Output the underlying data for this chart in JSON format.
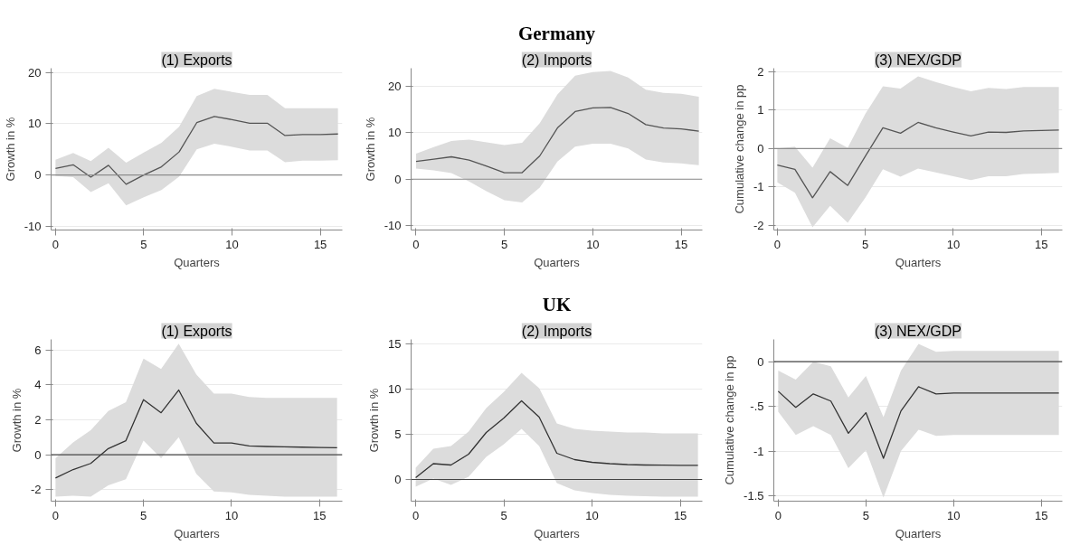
{
  "chart_data": [
    {
      "type": "line",
      "title": "(1) Exports",
      "xlabel": "Quarters",
      "ylabel": "Growth in %",
      "x": [
        0,
        1,
        2,
        3,
        4,
        5,
        6,
        7,
        8,
        9,
        10,
        11,
        12,
        13,
        14,
        15,
        16
      ],
      "xlim": [
        -0.25,
        16.25
      ],
      "xticks": [
        0,
        5,
        10,
        15
      ],
      "ylim": [
        -10.7,
        20.8
      ],
      "yticks": [
        {
          "value": -10,
          "label": "-10"
        },
        0,
        10,
        20
      ],
      "grid": "y",
      "ref_lines": [
        {
          "axis": "y",
          "value": 0,
          "color": "#8c8c8c"
        }
      ],
      "series": [
        {
          "color": "#555555",
          "values": [
            1.3,
            2.0,
            -0.4,
            1.9,
            -1.8,
            0,
            1.6,
            4.5,
            10.2,
            11.4,
            10.8,
            10.1,
            10.1,
            7.7,
            7.9,
            7.9,
            8.0
          ],
          "upper": [
            3.0,
            4.3,
            2.7,
            5.3,
            2.4,
            4.4,
            6.3,
            9.4,
            15.4,
            16.8,
            16.2,
            15.6,
            15.6,
            13.0,
            13.0,
            13.0,
            13.0
          ],
          "lower": [
            -0.2,
            -0.4,
            -3.3,
            -1.6,
            -5.9,
            -4.3,
            -2.9,
            -0.3,
            5.0,
            6.1,
            5.5,
            4.8,
            4.8,
            2.5,
            2.8,
            2.8,
            2.9
          ]
        }
      ]
    },
    {
      "type": "line",
      "title": "(2) Imports",
      "annotations": [
        "Germany"
      ],
      "xlabel": "Quarters",
      "ylabel": "Growth in %",
      "x": [
        0,
        1,
        2,
        3,
        4,
        5,
        6,
        7,
        8,
        9,
        10,
        11,
        12,
        13,
        14,
        15,
        16
      ],
      "xlim": [
        -0.28,
        16.2
      ],
      "xticks": [
        0,
        5,
        10,
        15
      ],
      "ylim": [
        -10.9,
        23.8
      ],
      "yticks": [
        {
          "value": -10,
          "label": "-10"
        },
        0,
        10,
        20
      ],
      "grid": "y",
      "ref_lines": [
        {
          "axis": "y",
          "value": 0,
          "color": "#8c8c8c"
        }
      ],
      "series": [
        {
          "color": "#555555",
          "values": [
            3.8,
            4.3,
            4.8,
            4.1,
            2.8,
            1.4,
            1.4,
            5.0,
            11.0,
            14.5,
            15.3,
            15.4,
            14.1,
            11.7,
            11.0,
            10.8,
            10.3
          ],
          "upper": [
            5.5,
            6.9,
            8.2,
            8.5,
            7.9,
            7.3,
            7.8,
            12.0,
            18.2,
            22.2,
            23.0,
            23.2,
            21.8,
            19.2,
            18.5,
            18.3,
            17.7
          ],
          "lower": [
            2.3,
            1.9,
            1.3,
            -0.5,
            -2.6,
            -4.5,
            -5.0,
            -1.8,
            3.8,
            7.0,
            7.6,
            7.6,
            6.6,
            4.2,
            3.6,
            3.4,
            3.0
          ]
        }
      ]
    },
    {
      "type": "line",
      "title": "(3) NEX/GDP",
      "xlabel": "Quarters",
      "ylabel": "Cumulative change in pp",
      "x": [
        0,
        1,
        2,
        3,
        4,
        5,
        6,
        7,
        8,
        9,
        10,
        11,
        12,
        13,
        14,
        15,
        16
      ],
      "xlim": [
        -0.2,
        16.2
      ],
      "xticks": [
        0,
        5,
        10,
        15
      ],
      "ylim": [
        -2.12,
        2.09
      ],
      "yticks": [
        {
          "value": -2,
          "label": "-2"
        },
        {
          "value": -1,
          "label": "-1"
        },
        0,
        1,
        2
      ],
      "grid": "y",
      "ref_lines": [
        {
          "axis": "y",
          "value": 0,
          "color": "#8c8c8c"
        }
      ],
      "series": [
        {
          "color": "#555555",
          "values": [
            -0.43,
            -0.54,
            -1.28,
            -0.6,
            -0.96,
            -0.2,
            0.54,
            0.4,
            0.68,
            0.54,
            0.43,
            0.33,
            0.43,
            0.42,
            0.46,
            0.47,
            0.48
          ],
          "upper": [
            0.0,
            0.05,
            -0.5,
            0.27,
            0.02,
            0.9,
            1.62,
            1.56,
            1.88,
            1.73,
            1.6,
            1.49,
            1.58,
            1.55,
            1.6,
            1.6,
            1.6
          ],
          "lower": [
            -0.88,
            -1.15,
            -2.05,
            -1.49,
            -1.93,
            -1.28,
            -0.54,
            -0.73,
            -0.52,
            -0.62,
            -0.72,
            -0.82,
            -0.72,
            -0.72,
            -0.66,
            -0.65,
            -0.63
          ]
        }
      ]
    },
    {
      "type": "line",
      "title": "(1) Exports",
      "xlabel": "Quarters",
      "ylabel": "Growth in %",
      "x": [
        0,
        1,
        2,
        3,
        4,
        5,
        6,
        7,
        8,
        9,
        10,
        11,
        12,
        13,
        14,
        15,
        16
      ],
      "xlim": [
        -0.25,
        16.3
      ],
      "xticks": [
        0,
        5,
        10,
        15
      ],
      "ylim": [
        -2.66,
        6.6
      ],
      "yticks": [
        {
          "value": -2,
          "label": "-2"
        },
        0,
        2,
        4,
        6
      ],
      "grid": "y",
      "ref_lines": [
        {
          "axis": "y",
          "value": 0,
          "color": "#444444"
        }
      ],
      "series": [
        {
          "color": "#333333",
          "values": [
            -1.33,
            -0.85,
            -0.5,
            0.35,
            0.8,
            3.15,
            2.4,
            3.7,
            1.8,
            0.67,
            0.67,
            0.5,
            0.47,
            0.45,
            0.43,
            0.41,
            0.4
          ],
          "upper": [
            -0.2,
            0.7,
            1.4,
            2.5,
            3.0,
            5.5,
            4.9,
            6.35,
            4.6,
            3.5,
            3.5,
            3.3,
            3.25,
            3.25,
            3.25,
            3.25,
            3.25
          ],
          "lower": [
            -2.4,
            -2.35,
            -2.4,
            -1.75,
            -1.4,
            0.8,
            -0.2,
            1.0,
            -1.1,
            -2.1,
            -2.15,
            -2.3,
            -2.35,
            -2.4,
            -2.4,
            -2.4,
            -2.4
          ]
        }
      ]
    },
    {
      "type": "line",
      "title": "(2) Imports",
      "annotations": [
        "UK"
      ],
      "xlabel": "Quarters",
      "ylabel": "Growth in %",
      "x": [
        0,
        1,
        2,
        3,
        4,
        5,
        6,
        7,
        8,
        9,
        10,
        11,
        12,
        13,
        14,
        15,
        16
      ],
      "xlim": [
        -0.26,
        16.25
      ],
      "xticks": [
        0,
        5,
        10,
        15
      ],
      "ylim": [
        -2.4,
        15.5
      ],
      "yticks": [
        0,
        5,
        10,
        15
      ],
      "grid": "y",
      "ref_lines": [
        {
          "axis": "y",
          "value": 0,
          "color": "#444444"
        }
      ],
      "series": [
        {
          "color": "#333333",
          "values": [
            0.2,
            1.75,
            1.6,
            2.8,
            5.2,
            6.8,
            8.7,
            6.9,
            2.9,
            2.2,
            1.9,
            1.75,
            1.65,
            1.6,
            1.58,
            1.57,
            1.57
          ],
          "upper": [
            1.3,
            3.4,
            3.7,
            5.3,
            7.9,
            9.7,
            11.8,
            10.1,
            6.2,
            5.6,
            5.4,
            5.3,
            5.2,
            5.2,
            5.1,
            5.1,
            5.1
          ],
          "lower": [
            -0.8,
            0.1,
            -0.6,
            0.3,
            2.5,
            3.9,
            5.6,
            3.7,
            -0.4,
            -1.2,
            -1.5,
            -1.7,
            -1.8,
            -1.85,
            -1.9,
            -1.9,
            -1.9
          ]
        }
      ]
    },
    {
      "type": "line",
      "title": "(3) NEX/GDP",
      "xlabel": "Quarters",
      "ylabel": "Cumulative change in pp",
      "x": [
        0,
        1,
        2,
        3,
        4,
        5,
        6,
        7,
        8,
        9,
        10,
        11,
        12,
        13,
        14,
        15,
        16
      ],
      "xlim": [
        -0.25,
        16.2
      ],
      "xticks": [
        0,
        5,
        10,
        15
      ],
      "ylim": [
        -1.56,
        0.25
      ],
      "yticks": [
        {
          "value": -1.5,
          "label": "-1.5"
        },
        {
          "value": -1,
          "label": "-1"
        },
        {
          "value": -0.5,
          "label": "-.5"
        },
        0
      ],
      "grid": "y",
      "ref_lines": [
        {
          "axis": "y",
          "value": 0,
          "color": "#444444"
        }
      ],
      "series": [
        {
          "color": "#333333",
          "values": [
            -0.33,
            -0.51,
            -0.36,
            -0.44,
            -0.8,
            -0.57,
            -1.08,
            -0.55,
            -0.28,
            -0.36,
            -0.35,
            -0.35,
            -0.35,
            -0.35,
            -0.35,
            -0.35,
            -0.35
          ],
          "upper": [
            -0.1,
            -0.2,
            0.0,
            -0.05,
            -0.4,
            -0.16,
            -0.62,
            -0.1,
            0.2,
            0.11,
            0.12,
            0.12,
            0.12,
            0.12,
            0.12,
            0.12,
            0.12
          ],
          "lower": [
            -0.56,
            -0.82,
            -0.72,
            -0.82,
            -1.19,
            -0.99,
            -1.52,
            -1.0,
            -0.76,
            -0.83,
            -0.82,
            -0.82,
            -0.82,
            -0.82,
            -0.82,
            -0.82,
            -0.82
          ]
        }
      ]
    }
  ]
}
